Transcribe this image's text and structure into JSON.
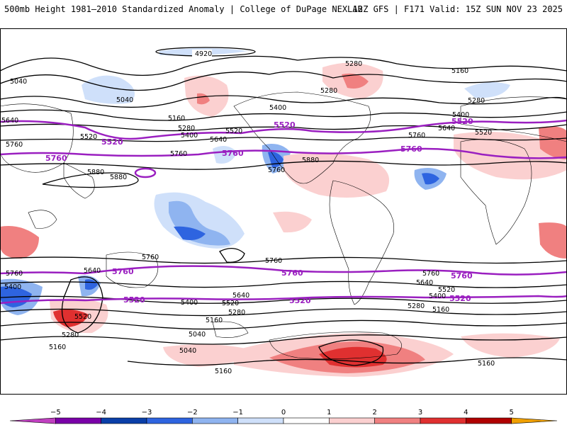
{
  "header": {
    "title_left": "500mb Height 1981–2010 Standardized Anomaly | College of DuPage NEXLAB",
    "title_right": "12Z GFS | F171 Valid: 15Z SUN NOV 23 2025"
  },
  "contour_labels": {
    "l4920": "4920",
    "l5040": "5040",
    "l5160": "5160",
    "l5280": "5280",
    "l5400": "5400",
    "l5520": "5520",
    "l5640": "5640",
    "l5760": "5760",
    "l5880": "5880"
  },
  "highlight_contours": {
    "c5520": "5520",
    "c5760": "5760"
  },
  "colorbar": {
    "ticks": [
      "−5",
      "−4",
      "−3",
      "−2",
      "−1",
      "0",
      "1",
      "2",
      "3",
      "4",
      "5"
    ],
    "colors": [
      "#c040c0",
      "#7a00a8",
      "#0a3fa8",
      "#2e64e0",
      "#8fb4f0",
      "#cfe0fa",
      "#ffffff",
      "#fbd0d0",
      "#f08080",
      "#e03030",
      "#b00000",
      "#f0a000"
    ]
  },
  "colors": {
    "highlight": "#9a1fc0",
    "contour": "#000000",
    "map_border": "#000000"
  }
}
